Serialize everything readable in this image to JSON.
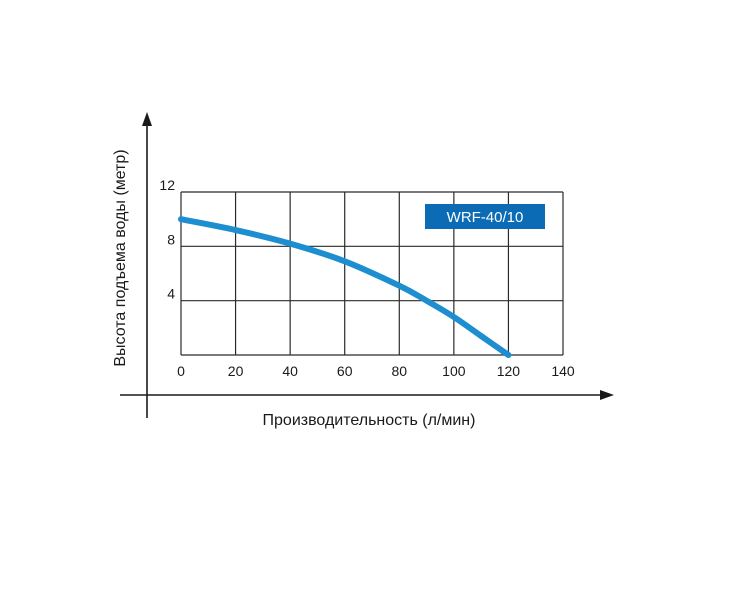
{
  "colors": {
    "curve": "#1d8ed0",
    "grid": "#2b2b2b",
    "axis": "#1a1a1a",
    "legend_bg": "#0b6bb5",
    "legend_text": "#ffffff"
  },
  "chart_data": {
    "type": "line",
    "title": "",
    "xlabel": "Производительность (л/мин)",
    "ylabel": "Высота подъема воды (метр)",
    "xlim": [
      0,
      140
    ],
    "ylim": [
      0,
      12
    ],
    "x_ticks": [
      "0",
      "20",
      "40",
      "60",
      "80",
      "100",
      "120",
      "140"
    ],
    "y_ticks": [
      "4",
      "8",
      "12"
    ],
    "x_tick_values": [
      0,
      20,
      40,
      60,
      80,
      100,
      120,
      140
    ],
    "y_tick_values": [
      4,
      8,
      12
    ],
    "x_grid": [
      0,
      20,
      40,
      60,
      80,
      100,
      120,
      140
    ],
    "y_grid": [
      0,
      4,
      8,
      12
    ],
    "grid": true,
    "legend_position": "top-right",
    "series": [
      {
        "name": "WRF-40/10",
        "x": [
          0,
          20,
          40,
          60,
          80,
          90,
          100,
          110,
          120
        ],
        "y": [
          10.0,
          9.2,
          8.2,
          6.9,
          5.1,
          4.0,
          2.8,
          1.4,
          0
        ]
      }
    ]
  }
}
